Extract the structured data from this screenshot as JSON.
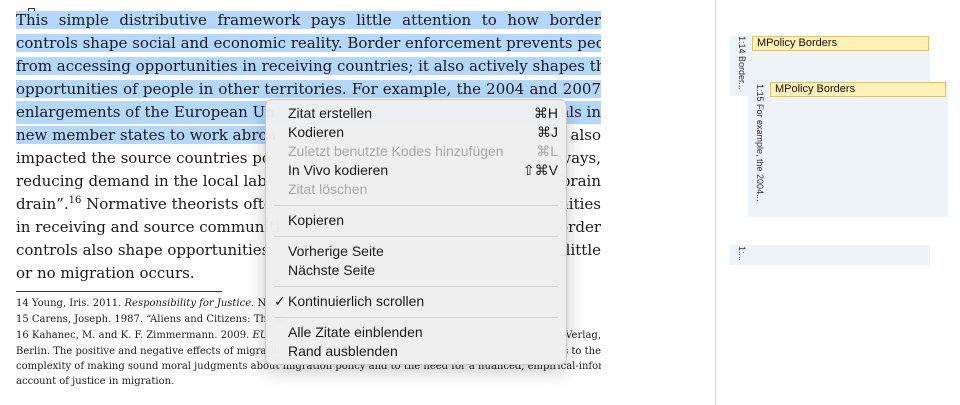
{
  "document": {
    "lines": [
      {
        "text": "This simple distributive framework pays little attention to how border",
        "highlighted": true
      },
      {
        "text": "controls shape social and economic reality. Border enforcement prevents people",
        "highlighted": true
      },
      {
        "text": "from accessing opportunities in receiving countries; it also actively shapes the",
        "highlighted": true
      },
      {
        "text": "opportunities of people in other territories. For example, the 2004 and 2007",
        "highlighted": true
      },
      {
        "text_left": "enlargements of the European Un",
        "text_right": "als in",
        "highlighted": true
      },
      {
        "text_left": "new member states to work abroa",
        "text_right": "also",
        "highlighted_left": true
      },
      {
        "text_left": "impacted the source countries po",
        "text_right": "ways,"
      },
      {
        "text_left": "reducing demand in the local lab",
        "text_right": "brain"
      },
      {
        "text_left": "drain”.",
        "sup": "16",
        "text_mid": " Normative theorists ofte",
        "text_right": "nities"
      },
      {
        "text_left": "in receiving and source communiti",
        "text_right": "order"
      },
      {
        "text_left": "controls also shape opportunities",
        "text_right": "little"
      },
      {
        "text": "or no migration occurs."
      }
    ],
    "footnotes": [
      {
        "pre": "14 Young, Iris. 2011. ",
        "italic": "Responsibility for Justice",
        "post": ". New",
        "right": ""
      },
      {
        "pre": "15 Carens, Joseph. 1987. “Aliens and Citizens: The C",
        "italic": "",
        "post": "",
        "right": ""
      },
      {
        "pre": "16 Kahanec, M. and K. F. Zimmermann. 2009. ",
        "italic": "EU",
        "post": "",
        "right": "Verlag,"
      },
      {
        "pre": "Berlin. The positive and negative effects of migratio",
        "italic": "",
        "post": "",
        "right": "s to the"
      },
      {
        "pre": "complexity of making sound moral judgments about migration policy and to the need for a nuanced, empirical-informed",
        "italic": "",
        "post": "",
        "right": ""
      },
      {
        "pre": "account of justice in migration.",
        "italic": "",
        "post": "",
        "right": ""
      }
    ]
  },
  "margin_panel": {
    "quote_labels": [
      "1:14 Border...",
      "1:15 For example, the 2004...",
      "1:..."
    ],
    "codes": [
      "MPolicy Borders",
      "MPolicy Borders"
    ]
  },
  "context_menu": {
    "items": [
      {
        "label": "Zitat erstellen",
        "shortcut": "⌘H",
        "disabled": false
      },
      {
        "label": "Kodieren",
        "shortcut": "⌘J",
        "disabled": false
      },
      {
        "label": "Zuletzt benutzte Kodes hinzufügen",
        "shortcut": "⌘L",
        "disabled": true
      },
      {
        "label": "In Vivo kodieren",
        "shortcut": "⇧⌘V",
        "disabled": false
      },
      {
        "label": "Zitat löschen",
        "shortcut": "",
        "disabled": true
      },
      {
        "label": "Kopieren",
        "shortcut": "",
        "disabled": false
      },
      {
        "label": "Vorherige Seite",
        "shortcut": "",
        "disabled": false
      },
      {
        "label": "Nächste Seite",
        "shortcut": "",
        "disabled": false
      },
      {
        "label": "Kontinuierlich scrollen",
        "shortcut": "",
        "disabled": false,
        "checked": true
      },
      {
        "label": "Alle Zitate einblenden",
        "shortcut": "",
        "disabled": false
      },
      {
        "label": "Rand ausblenden",
        "shortcut": "",
        "disabled": false
      }
    ],
    "check_glyph": "✓"
  },
  "colors": {
    "selection": "#b3d7ff",
    "code_tag": "#fff1b8",
    "margin_band": "#eef3f8"
  }
}
